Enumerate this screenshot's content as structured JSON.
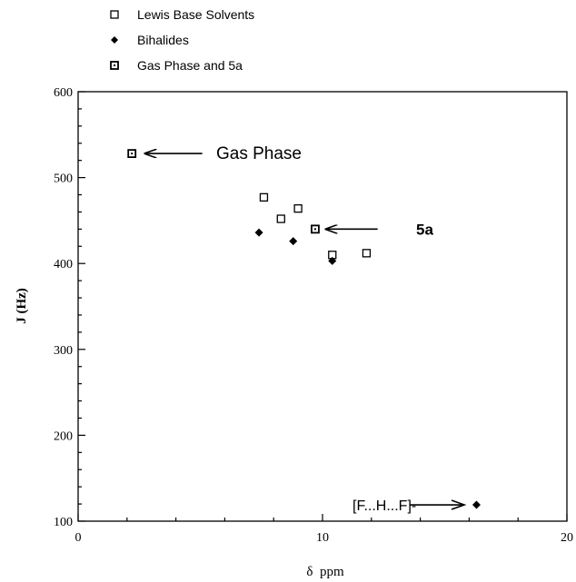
{
  "chart_data": {
    "type": "scatter",
    "title": "",
    "xlabel": "δ  ppm",
    "ylabel": "J (Hz)",
    "xlim": [
      0,
      20
    ],
    "ylim": [
      100,
      600
    ],
    "xticks": [
      "0",
      "10",
      "20"
    ],
    "yticks": [
      "100",
      "200",
      "300",
      "400",
      "500",
      "600"
    ],
    "grid": false,
    "legend_position": "top-left",
    "series": [
      {
        "name": "Lewis Base Solvents",
        "marker": "open-square",
        "points": [
          {
            "x": 7.6,
            "y": 477
          },
          {
            "x": 8.3,
            "y": 452
          },
          {
            "x": 9.0,
            "y": 464
          },
          {
            "x": 10.4,
            "y": 410
          },
          {
            "x": 11.8,
            "y": 412
          }
        ]
      },
      {
        "name": "Bihalides",
        "marker": "filled-diamond",
        "points": [
          {
            "x": 7.4,
            "y": 436
          },
          {
            "x": 8.8,
            "y": 426
          },
          {
            "x": 10.4,
            "y": 403
          },
          {
            "x": 16.3,
            "y": 119
          }
        ]
      },
      {
        "name": "Gas Phase and 5a",
        "marker": "dotted-square",
        "points": [
          {
            "x": 2.2,
            "y": 528
          },
          {
            "x": 9.7,
            "y": 440
          }
        ]
      }
    ],
    "annotations": [
      {
        "text": "Gas Phase",
        "arrow_to": {
          "x": 2.7,
          "y": 528
        }
      },
      {
        "text": "5a",
        "arrow_to": {
          "x": 10.1,
          "y": 440
        }
      },
      {
        "text": "[F...H...F]-",
        "arrow_to": {
          "x": 15.8,
          "y": 119
        }
      }
    ]
  }
}
